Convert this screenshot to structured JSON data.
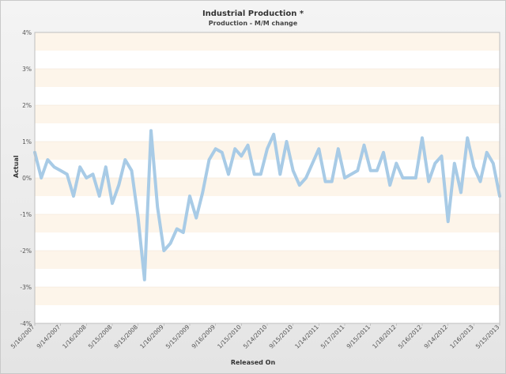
{
  "chart_data": {
    "type": "line",
    "title": "Industrial Production *",
    "subtitle": "Production - M/M change",
    "xlabel": "Released On",
    "ylabel": "Actual",
    "ylim": [
      -4,
      4
    ],
    "yticks": [
      "4%",
      "3%",
      "2%",
      "1%",
      "0%",
      "-1%",
      "-2%",
      "-3%",
      "-4%"
    ],
    "xticks": [
      "5/16/2007",
      "9/14/2007",
      "1/16/2008",
      "5/15/2008",
      "9/15/2008",
      "1/16/2009",
      "5/15/2009",
      "9/16/2009",
      "1/15/2010",
      "5/14/2010",
      "9/15/2010",
      "1/14/2011",
      "5/17/2011",
      "9/15/2011",
      "1/18/2012",
      "5/16/2012",
      "9/14/2012",
      "1/16/2013",
      "5/15/2013"
    ],
    "grid": "horizontal bands",
    "series": [
      {
        "values": [
          0.7,
          0.0,
          0.5,
          0.3,
          0.2,
          0.1,
          -0.5,
          0.3,
          0.0,
          0.1,
          -0.5,
          0.3,
          -0.7,
          -0.2,
          0.5,
          0.2,
          -1.1,
          -2.8,
          1.3,
          -0.8,
          -2.0,
          -1.8,
          -1.4,
          -1.5,
          -0.5,
          -1.1,
          -0.4,
          0.5,
          0.8,
          0.7,
          0.1,
          0.8,
          0.6,
          0.9,
          0.1,
          0.1,
          0.8,
          1.2,
          0.1,
          1.0,
          0.2,
          -0.2,
          0.0,
          0.4,
          0.8,
          -0.1,
          -0.1,
          0.8,
          0.0,
          0.1,
          0.2,
          0.9,
          0.2,
          0.2,
          0.7,
          -0.2,
          0.4,
          0.0,
          0.0,
          0.0,
          1.1,
          -0.1,
          0.4,
          0.6,
          -1.2,
          0.4,
          -0.4,
          1.1,
          0.3,
          -0.1,
          0.7,
          0.4,
          -0.5
        ],
        "color": "#a8cbe6"
      }
    ]
  }
}
